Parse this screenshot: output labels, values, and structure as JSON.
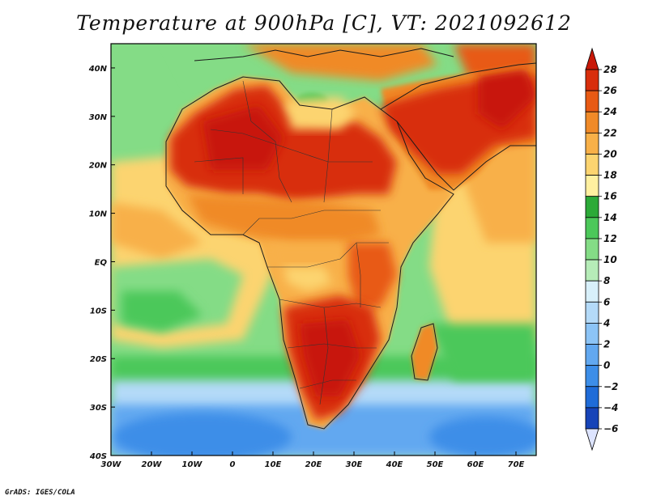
{
  "title": "Temperature at 900hPa [C], VT: 2021092612",
  "credit": "GrADS: IGES/COLA",
  "map": {
    "lon_range": [
      -30,
      75
    ],
    "lat_range": [
      -40,
      45
    ],
    "lon_ticks": [
      {
        "value": -30,
        "label": "30W"
      },
      {
        "value": -20,
        "label": "20W"
      },
      {
        "value": -10,
        "label": "10W"
      },
      {
        "value": 0,
        "label": "0"
      },
      {
        "value": 10,
        "label": "10E"
      },
      {
        "value": 20,
        "label": "20E"
      },
      {
        "value": 30,
        "label": "30E"
      },
      {
        "value": 40,
        "label": "40E"
      },
      {
        "value": 50,
        "label": "50E"
      },
      {
        "value": 60,
        "label": "60E"
      },
      {
        "value": 70,
        "label": "70E"
      }
    ],
    "lat_ticks": [
      {
        "value": 40,
        "label": "40N"
      },
      {
        "value": 30,
        "label": "30N"
      },
      {
        "value": 20,
        "label": "20N"
      },
      {
        "value": 10,
        "label": "10N"
      },
      {
        "value": 0,
        "label": "EQ"
      },
      {
        "value": -10,
        "label": "10S"
      },
      {
        "value": -20,
        "label": "20S"
      },
      {
        "value": -30,
        "label": "30S"
      },
      {
        "value": -40,
        "label": "40S"
      }
    ]
  },
  "colorbar": {
    "colors": [
      "#0d1a7a",
      "#1744b8",
      "#1f6cd8",
      "#3d8ee8",
      "#62a8f0",
      "#8cc4f6",
      "#b4daf8",
      "#d8f0fa",
      "#b6ecb8",
      "#84dc86",
      "#4cc85a",
      "#2caa38",
      "#fff0a0",
      "#fcd470",
      "#f8b048",
      "#f08a28",
      "#e85a14",
      "#d82e0c",
      "#c81808"
    ],
    "levels": [
      -6,
      -4,
      -2,
      0,
      2,
      4,
      6,
      8,
      10,
      12,
      14,
      16,
      18,
      20,
      22,
      24,
      26,
      28
    ],
    "labels": [
      "28",
      "26",
      "24",
      "22",
      "20",
      "18",
      "16",
      "14",
      "12",
      "10",
      "8",
      "6",
      "4",
      "2",
      "0",
      "−2",
      "−4",
      "−6"
    ]
  }
}
